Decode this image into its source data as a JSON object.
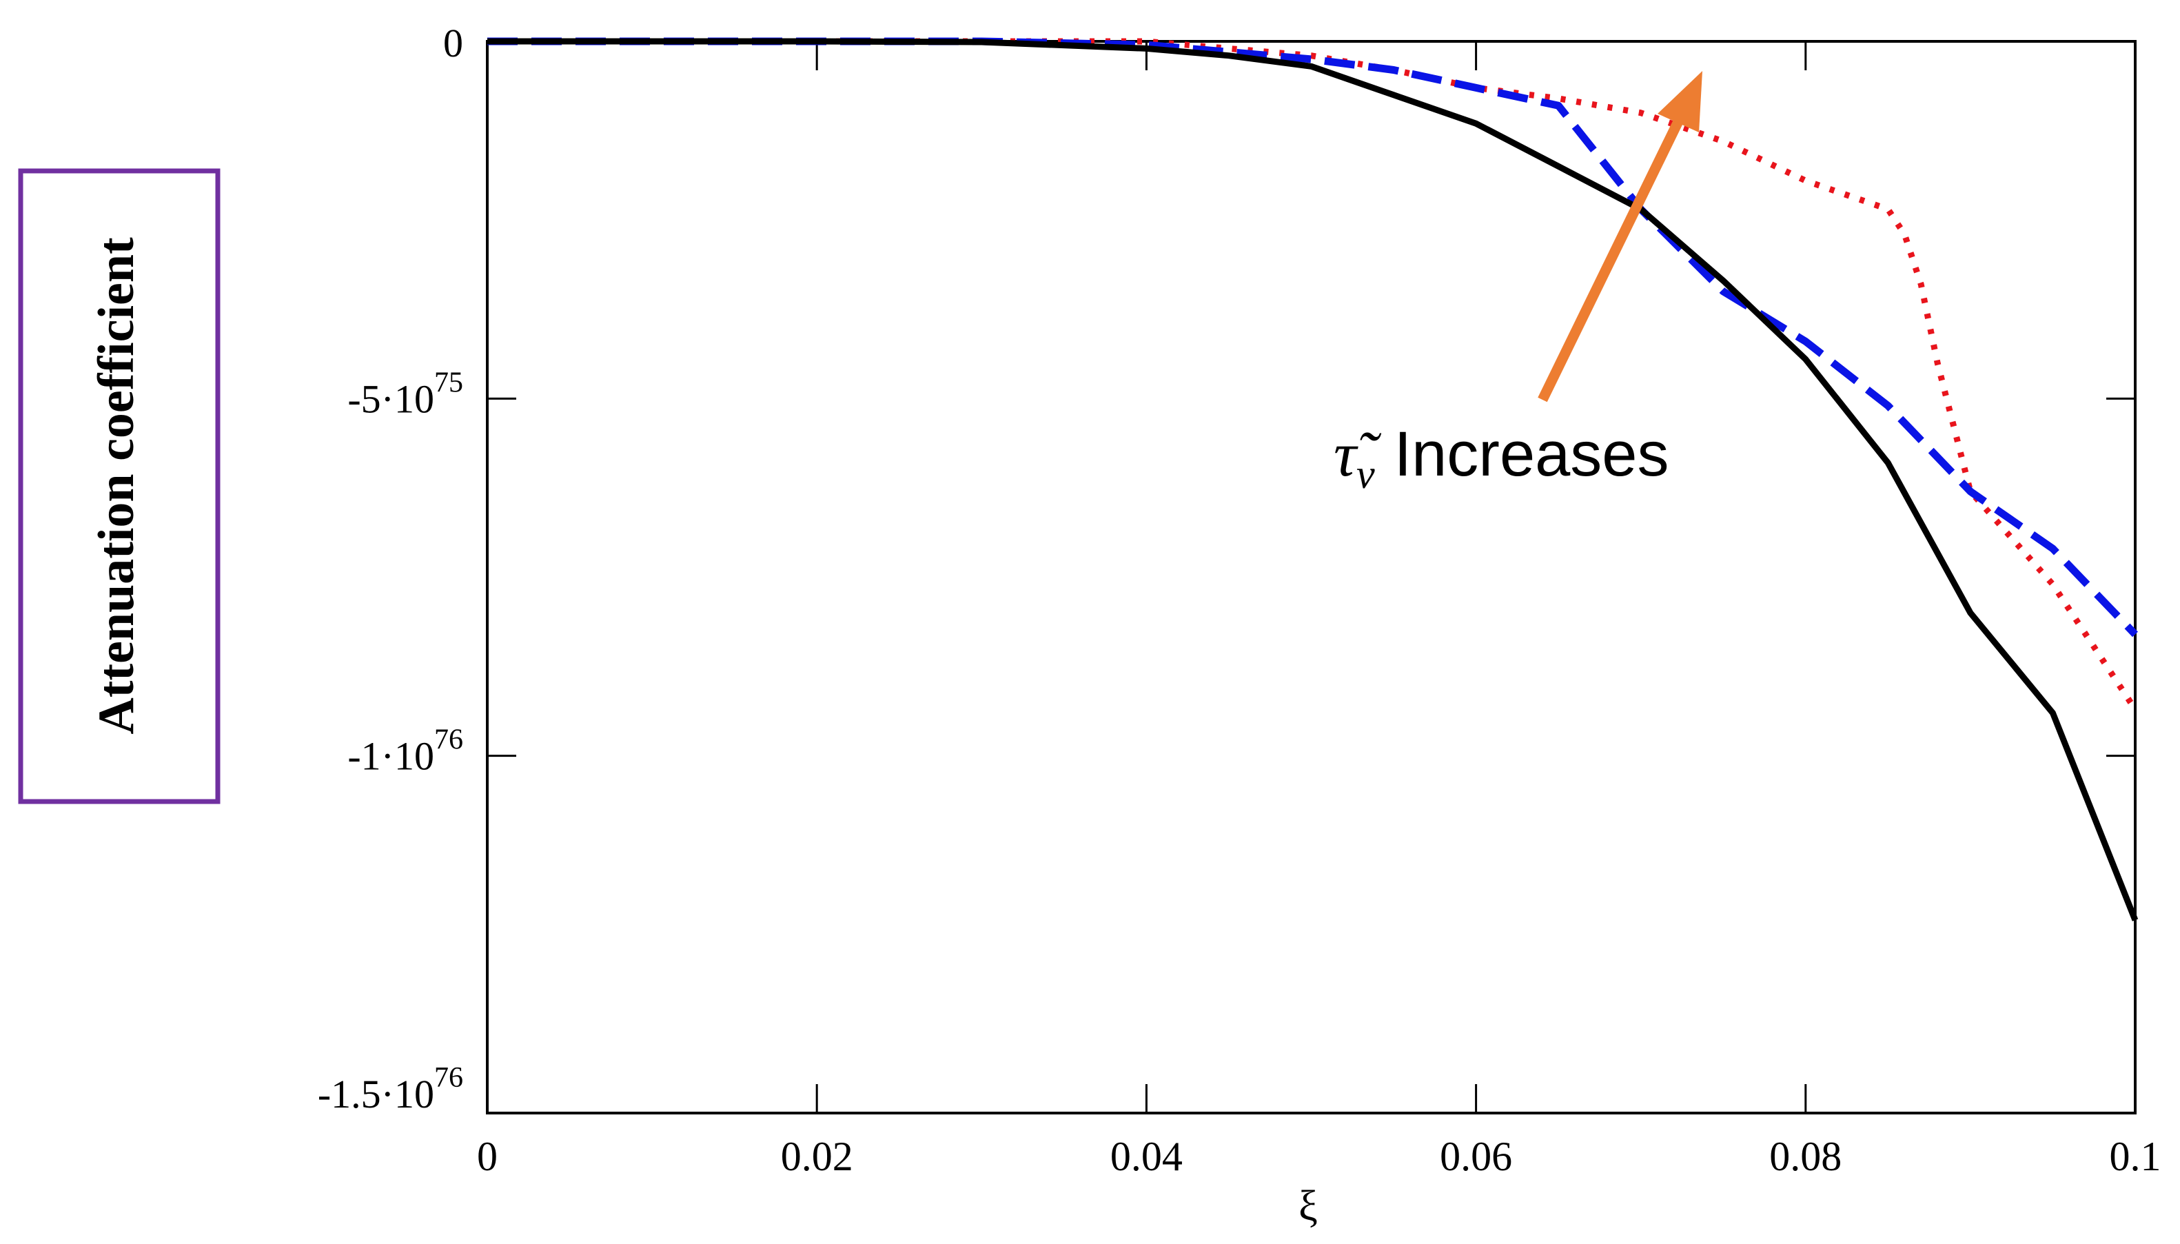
{
  "chart_data": {
    "type": "line",
    "title": "",
    "xlabel": "ξ",
    "ylabel": "Attenuation coefficient",
    "xlim": [
      0,
      0.1
    ],
    "ylim": [
      -1.5e+76,
      0
    ],
    "x_ticks": [
      {
        "value": 0,
        "label": "0"
      },
      {
        "value": 0.02,
        "label": "0.02"
      },
      {
        "value": 0.04,
        "label": "0.04"
      },
      {
        "value": 0.06,
        "label": "0.06"
      },
      {
        "value": 0.08,
        "label": "0.08"
      },
      {
        "value": 0.1,
        "label": "0.1"
      }
    ],
    "y_ticks": [
      {
        "value": 0,
        "mantissa": "0",
        "exponent": ""
      },
      {
        "value": -5e+75,
        "mantissa": "-5·10",
        "exponent": "75"
      },
      {
        "value": -1e+76,
        "mantissa": "-1·10",
        "exponent": "76"
      },
      {
        "value": -1.5e+76,
        "mantissa": "-1.5·10",
        "exponent": "76"
      }
    ],
    "grid": false,
    "annotation": {
      "symbol": "τ̃",
      "subscript": "ν",
      "text": "Increases"
    },
    "series": [
      {
        "style": "solid",
        "color": "#000000",
        "x": [
          0,
          0.01,
          0.02,
          0.03,
          0.04,
          0.045,
          0.05,
          0.055,
          0.06,
          0.065,
          0.07,
          0.075,
          0.08,
          0.085,
          0.09,
          0.095,
          0.1
        ],
        "y": [
          0,
          0,
          0,
          -1e+73,
          -1e+74,
          -2e+74,
          -3.5e+74,
          -7.5e+74,
          -1.15e+75,
          -1.75e+75,
          -2.35e+75,
          -3.35e+75,
          -4.45e+75,
          -5.9e+75,
          -8e+75,
          -9.4e+75,
          -1.23e+76
        ]
      },
      {
        "style": "dotted",
        "color": "#e8141c",
        "x": [
          0,
          0.01,
          0.02,
          0.03,
          0.04,
          0.045,
          0.05,
          0.055,
          0.06,
          0.065,
          0.07,
          0.075,
          0.08,
          0.085,
          0.086,
          0.087,
          0.088,
          0.09,
          0.095,
          0.1
        ],
        "y": [
          0,
          0,
          0,
          0,
          0,
          -1e+74,
          -2e+74,
          -4e+74,
          -6.5e+74,
          -8e+74,
          -1e+75,
          -1.4e+75,
          -1.95e+75,
          -2.35e+75,
          -2.7e+75,
          -3.4e+75,
          -4.5e+75,
          -6.3e+75,
          -7.6e+75,
          -9.35e+75
        ]
      },
      {
        "style": "dashed",
        "color": "#0a14e6",
        "x": [
          0,
          0.01,
          0.02,
          0.03,
          0.04,
          0.045,
          0.05,
          0.055,
          0.06,
          0.065,
          0.07,
          0.075,
          0.08,
          0.085,
          0.09,
          0.095,
          0.1
        ],
        "y": [
          0,
          0,
          0,
          0,
          -5e+73,
          -1.5e+74,
          -2.5e+74,
          -4e+74,
          -6.5e+74,
          -9e+74,
          -2.35e+75,
          -3.5e+75,
          -4.2e+75,
          -5.1e+75,
          -6.3e+75,
          -7.1e+75,
          -8.3e+75
        ]
      }
    ]
  }
}
